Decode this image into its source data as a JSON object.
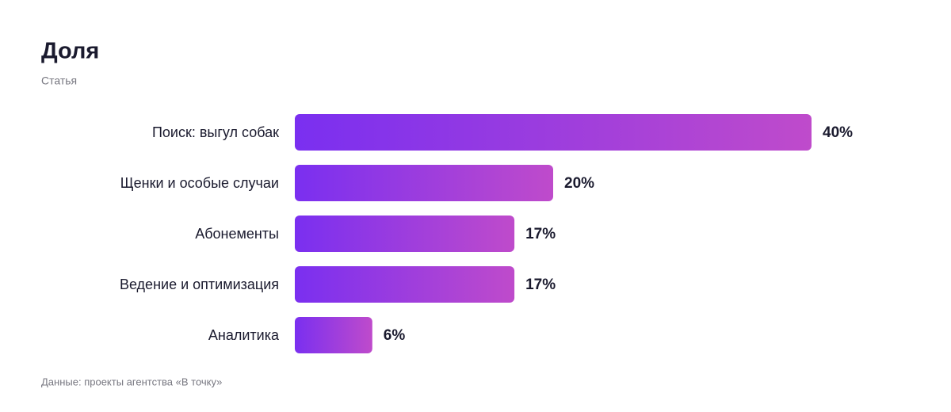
{
  "chart_data": {
    "type": "bar",
    "orientation": "horizontal",
    "title": "Доля",
    "subtitle": "Статья",
    "categories": [
      "Поиск: выгул собак",
      "Щенки и особые случаи",
      "Абонементы",
      "Ведение и оптимизация",
      "Аналитика"
    ],
    "values": [
      40,
      20,
      17,
      17,
      6
    ],
    "value_labels": [
      "40%",
      "20%",
      "17%",
      "17%",
      "6%"
    ],
    "color": [
      "#7a2ff0",
      "#bf4bcb"
    ],
    "grid": false,
    "source": "Данные: проекты агентства «В точку»"
  }
}
